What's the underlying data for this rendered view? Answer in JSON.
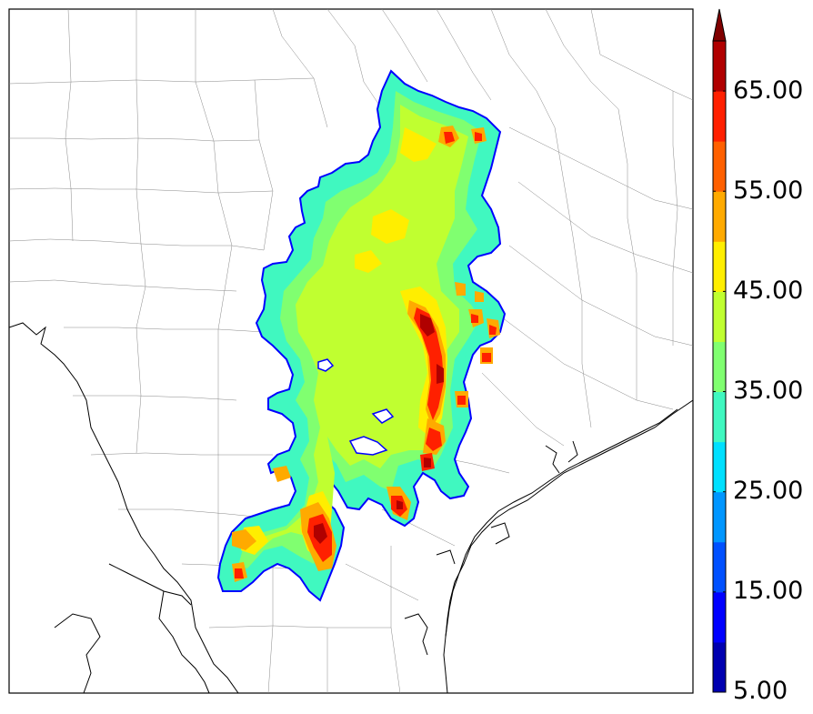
{
  "colorbar": {
    "tick_labels": [
      "65.00",
      "55.00",
      "45.00",
      "35.00",
      "25.00",
      "15.00",
      "5.00"
    ],
    "levels": [
      5,
      10,
      15,
      20,
      25,
      30,
      35,
      40,
      45,
      50,
      55,
      60,
      65,
      70
    ],
    "colors": [
      "#0000b0",
      "#0000ff",
      "#0050ff",
      "#0096ff",
      "#00e0ff",
      "#40f8c0",
      "#80ff70",
      "#c0ff30",
      "#ffee00",
      "#ffaa00",
      "#ff6000",
      "#ff2000",
      "#b00000",
      "#800000"
    ],
    "extend": "max"
  },
  "map": {
    "field_colors": {
      "outline": "#0000ff",
      "low": "#40f8c0",
      "mid": "#80ff70",
      "midhigh": "#c0ff30",
      "high": "#ffee00",
      "veryhigh": "#ffaa00",
      "extreme": "#ff2000",
      "max": "#b00000"
    }
  }
}
